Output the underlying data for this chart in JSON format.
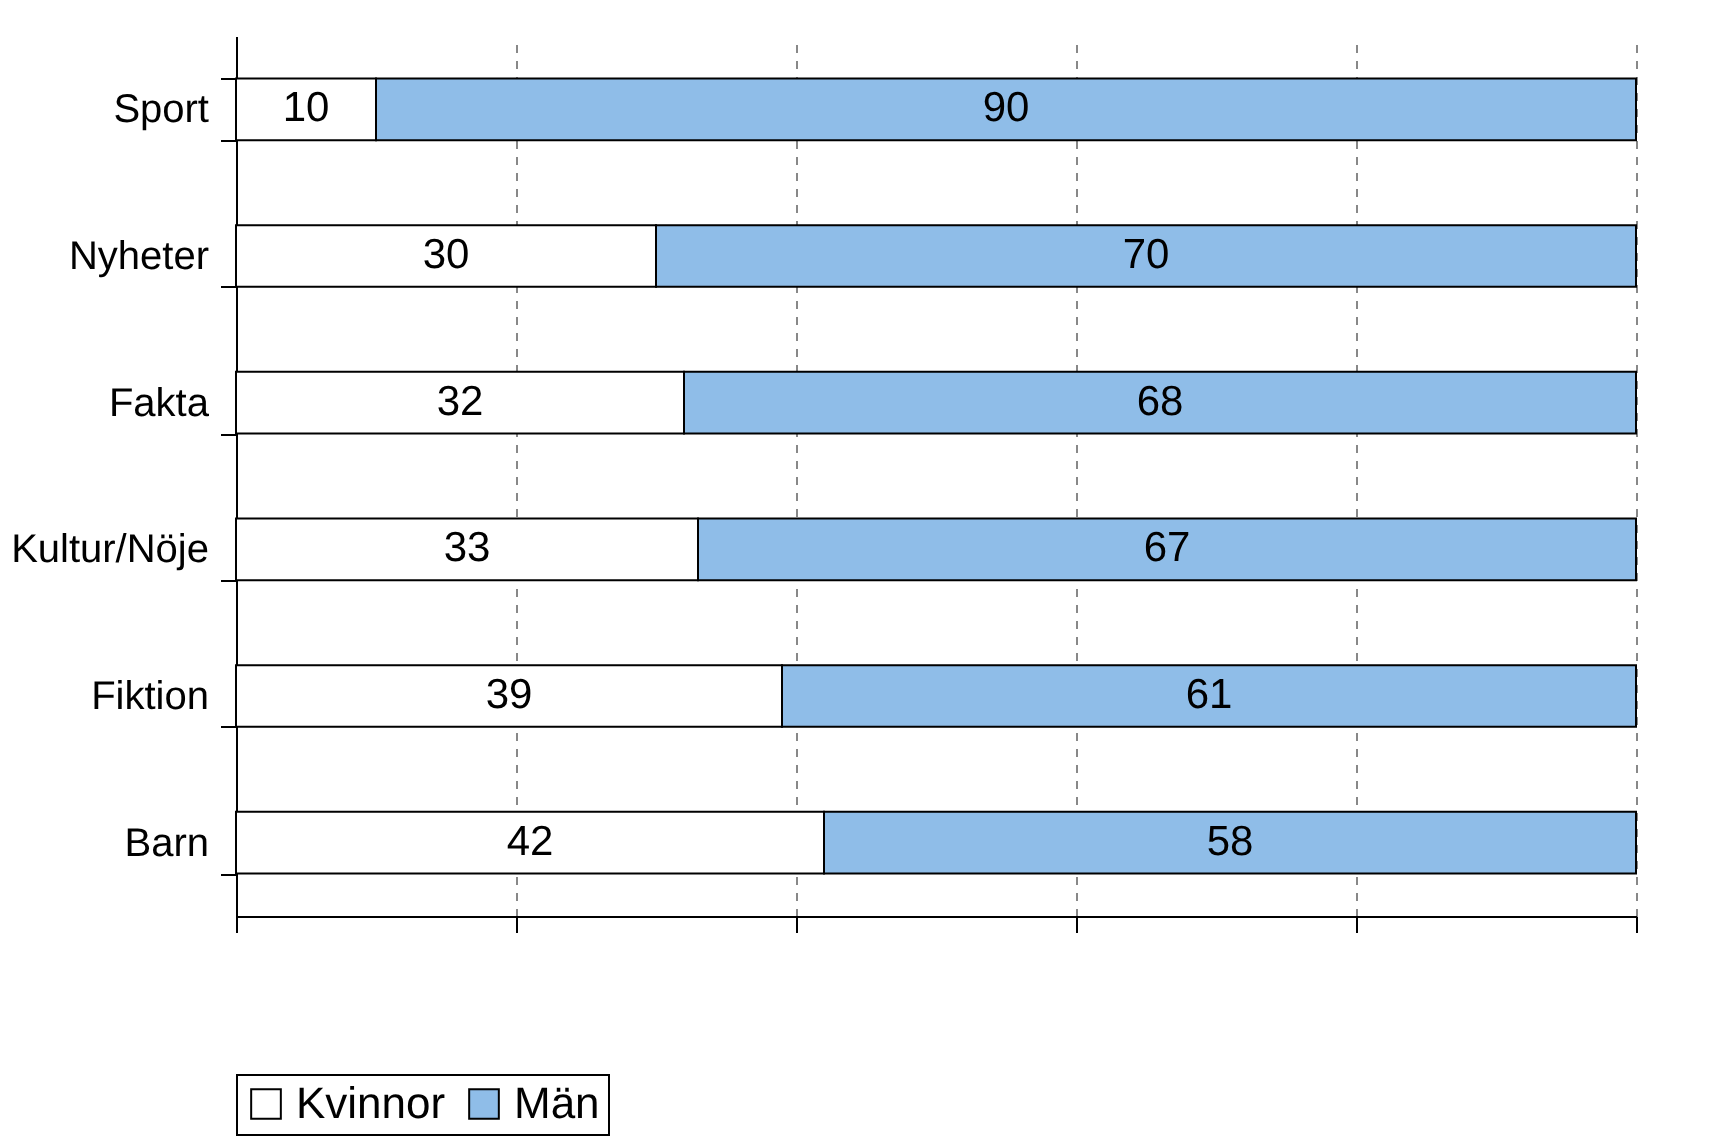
{
  "chart_data": {
    "type": "bar",
    "orientation": "horizontal",
    "stacked": true,
    "categories": [
      "Sport",
      "Nyheter",
      "Fakta",
      "Kultur/Nöje",
      "Fiktion",
      "Barn"
    ],
    "series": [
      {
        "name": "Kvinnor",
        "color": "#ffffff",
        "values": [
          10,
          30,
          32,
          33,
          39,
          42
        ]
      },
      {
        "name": "Män",
        "color": "#8fbde8",
        "values": [
          90,
          70,
          68,
          67,
          61,
          58
        ]
      }
    ],
    "xlim": [
      0,
      100
    ],
    "xticks": [
      {
        "value": 0,
        "label": null
      },
      {
        "value": 20,
        "label": null
      },
      {
        "value": 40,
        "label": null
      },
      {
        "value": 60,
        "label": null
      },
      {
        "value": 80,
        "label": null
      },
      {
        "value": 100,
        "label": null
      }
    ],
    "tick_labels": "y",
    "grid": "x",
    "data_labels": true,
    "legend": "bottom"
  }
}
